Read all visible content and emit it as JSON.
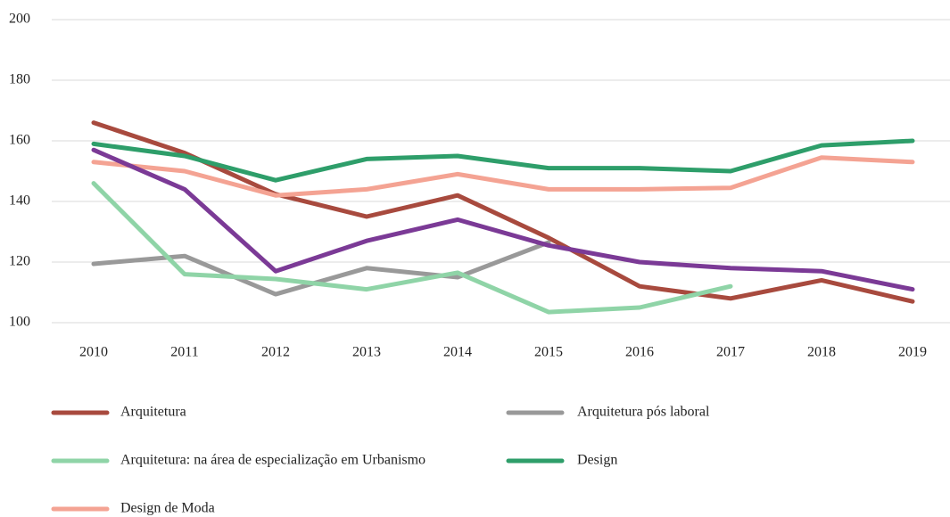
{
  "chart_data": {
    "type": "line",
    "categories": [
      "2010",
      "2011",
      "2012",
      "2013",
      "2014",
      "2015",
      "2016",
      "2017",
      "2018",
      "2019"
    ],
    "ylim": [
      100,
      200
    ],
    "yticks": [
      100,
      120,
      140,
      160,
      180,
      200
    ],
    "grid": true,
    "series": [
      {
        "name": "Arquitetura",
        "color": "#a84a3e",
        "values": [
          166,
          156,
          142.4,
          135,
          142,
          128,
          112,
          108,
          114,
          107
        ]
      },
      {
        "name": "Arquitetura pós laboral",
        "color": "#999999",
        "values": [
          119.4,
          122,
          109.4,
          118,
          115,
          126.5,
          null,
          null,
          null,
          null
        ]
      },
      {
        "name": "Arquitetura: na área de especialização em Urbanismo",
        "color": "#8fd4a7",
        "values": [
          146,
          116,
          114.4,
          111,
          116.5,
          103.5,
          105,
          112,
          null,
          null
        ]
      },
      {
        "name": "Design",
        "color": "#2e9e6a",
        "values": [
          159,
          155,
          147,
          154,
          155,
          151,
          151,
          150,
          158.5,
          160
        ]
      },
      {
        "name": "Design de Moda",
        "color": "#f4a393",
        "values": [
          153,
          150,
          142,
          144,
          149,
          144,
          144,
          144.5,
          154.5,
          153
        ]
      },
      {
        "color": "#7b3a96",
        "values": [
          157,
          144,
          117,
          127,
          134,
          125.5,
          120,
          118,
          117,
          111
        ]
      }
    ]
  }
}
